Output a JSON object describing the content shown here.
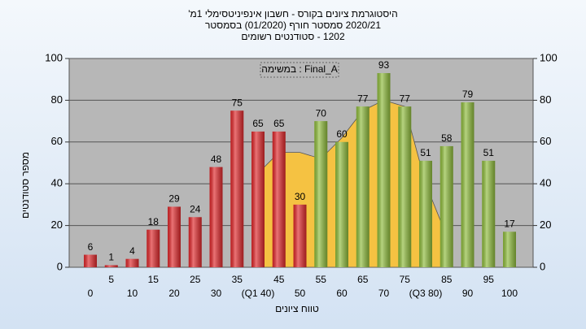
{
  "chart_data": {
    "type": "bar",
    "title": [
      "היסטוגרמת ציונים בקורס - חשבון אינפיניטסימלי 1מ'",
      "2020/21 סמסטר חורף (01/2020) בסמסטר",
      "1202 - סטודנטים רשומים"
    ],
    "annotation": "במשימה : Final_A",
    "x_label": "טווח ציונים",
    "y_label": "מספר סטודנטים",
    "categories": [
      "0",
      "5",
      "10",
      "15",
      "20",
      "25",
      "30",
      "35",
      "(Q1 40)",
      "45",
      "50",
      "55",
      "60",
      "65",
      "70",
      "75",
      "(Q3 80)",
      "85",
      "90",
      "95",
      "100"
    ],
    "series": [
      {
        "name": "Final_A",
        "colors": [
          "#e0282b",
          "#e0282b",
          "#e0282b",
          "#e0282b",
          "#e0282b",
          "#e0282b",
          "#e0282b",
          "#e0282b",
          "#e0282b",
          "#e0282b",
          "#e0282b",
          "#8fbc3c",
          "#8fbc3c",
          "#8fbc3c",
          "#8fbc3c",
          "#8fbc3c",
          "#8fbc3c",
          "#8fbc3c",
          "#8fbc3c",
          "#8fbc3c",
          "#8fbc3c"
        ],
        "values": [
          6,
          1,
          4,
          18,
          29,
          24,
          48,
          75,
          65,
          65,
          30,
          70,
          60,
          77,
          93,
          77,
          51,
          58,
          79,
          51,
          17
        ]
      }
    ],
    "area": {
      "color": "#f5c242",
      "values": [
        null,
        null,
        null,
        null,
        null,
        null,
        null,
        null,
        45,
        55,
        55,
        52,
        62,
        75,
        80,
        77,
        40,
        15,
        null,
        null,
        null
      ]
    },
    "ylim": [
      0,
      100
    ],
    "yticks": [
      0,
      20,
      40,
      60,
      80,
      100
    ],
    "y2lim": [
      0,
      100
    ],
    "y2ticks": [
      0,
      20,
      40,
      60,
      80,
      100
    ],
    "grid": true
  }
}
